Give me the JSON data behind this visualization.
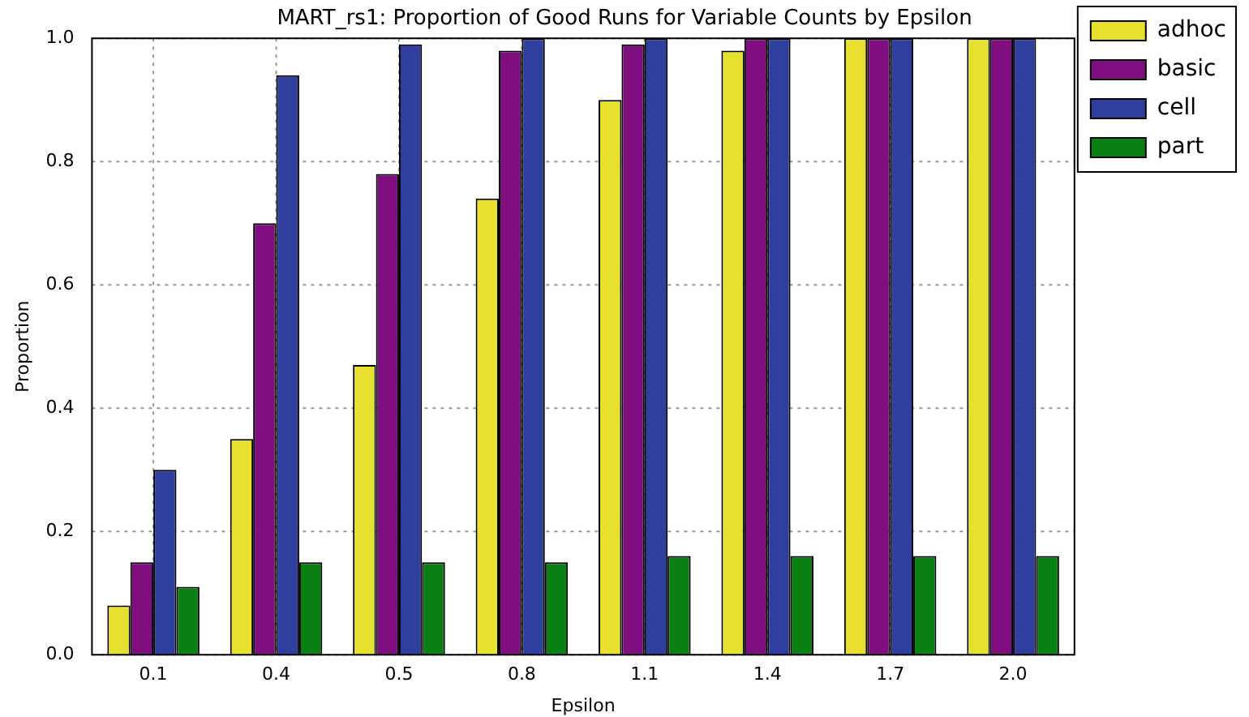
{
  "chart_data": {
    "type": "bar",
    "title": "MART_rs1: Proportion of Good Runs for Variable Counts by Epsilon",
    "xlabel": "Epsilon",
    "ylabel": "Proportion",
    "categories": [
      "0.1",
      "0.4",
      "0.5",
      "0.8",
      "1.1",
      "1.4",
      "1.7",
      "2.0"
    ],
    "series": [
      {
        "name": "adhoc",
        "color": "#e8e030",
        "values": [
          0.08,
          0.35,
          0.47,
          0.74,
          0.9,
          0.98,
          1.0,
          1.0
        ]
      },
      {
        "name": "basic",
        "color": "#7f0f7e",
        "values": [
          0.15,
          0.7,
          0.78,
          0.98,
          0.99,
          1.0,
          1.0,
          1.0
        ]
      },
      {
        "name": "cell",
        "color": "#2e3f9e",
        "values": [
          0.3,
          0.94,
          0.99,
          1.0,
          1.0,
          1.0,
          1.0,
          1.0
        ]
      },
      {
        "name": "part",
        "color": "#0a7f14",
        "values": [
          0.11,
          0.15,
          0.15,
          0.15,
          0.16,
          0.16,
          0.16,
          0.16
        ]
      }
    ],
    "ylim": [
      0,
      1
    ],
    "yticks": [
      {
        "value": 0,
        "label": "0.0"
      },
      {
        "value": 0.2,
        "label": "0.2"
      },
      {
        "value": 0.4,
        "label": "0.4"
      },
      {
        "value": 0.6,
        "label": "0.6"
      },
      {
        "value": 0.8,
        "label": "0.8"
      },
      {
        "value": 1,
        "label": "1.0"
      }
    ],
    "grid": true,
    "legend": "top right"
  }
}
